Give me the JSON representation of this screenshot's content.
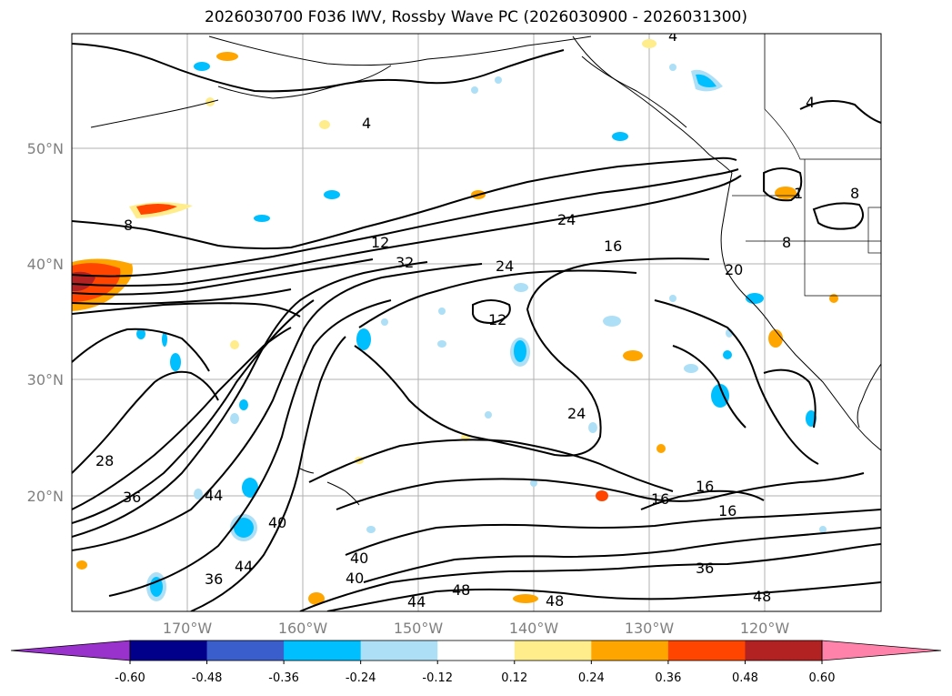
{
  "title": "2026030700 F036 IWV, Rossby Wave PC (2026030900 - 2026031300)",
  "lat_labels": [
    "50°N",
    "40°N",
    "30°N",
    "20°N"
  ],
  "lon_labels": [
    "170°W",
    "160°W",
    "150°W",
    "140°W",
    "130°W",
    "120°W"
  ],
  "contour_labels": [
    "4",
    "4",
    "4",
    "8",
    "8",
    "8",
    "1",
    "12",
    "12",
    "16",
    "16",
    "16",
    "16",
    "20",
    "24",
    "24",
    "24",
    "28",
    "32",
    "36",
    "36",
    "36",
    "40",
    "40",
    "40",
    "44",
    "44",
    "44",
    "48",
    "48",
    "48"
  ],
  "colorbar": {
    "ticks": [
      "-0.60",
      "-0.48",
      "-0.36",
      "-0.24",
      "-0.12",
      "0.12",
      "0.24",
      "0.36",
      "0.48",
      "0.60"
    ],
    "colors": [
      "#9932CC",
      "#00008B",
      "#3A5FCD",
      "#00BFFF",
      "#ADDFF7",
      "#FFFFFF",
      "#FFEC8B",
      "#FFA500",
      "#FF4500",
      "#B22222",
      "#FF82AB"
    ]
  }
}
